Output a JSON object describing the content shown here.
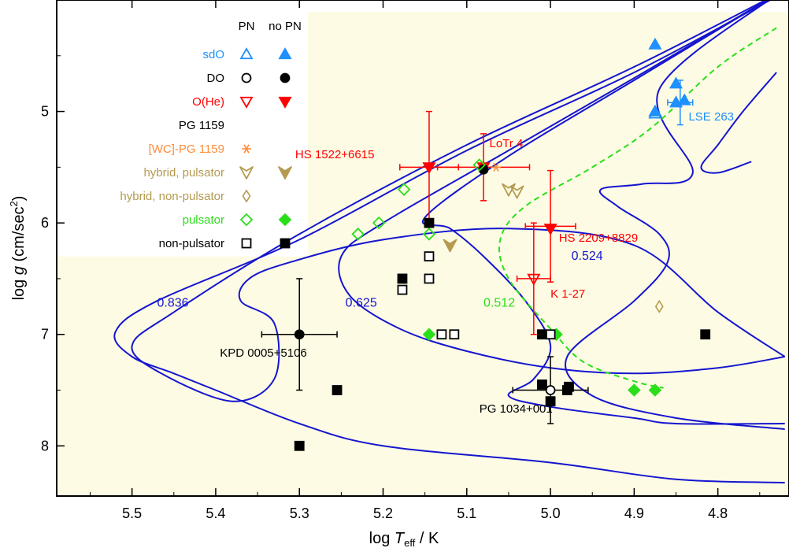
{
  "chart_data": {
    "type": "scatter",
    "xlabel_prefix": "log ",
    "xlabel_T": "T",
    "xlabel_sub": "eff",
    "xlabel_suffix": " / K",
    "ylabel_prefix": "log ",
    "ylabel_g": "g",
    "ylabel_paren": " (cm/sec",
    "ylabel_sup": "2",
    "ylabel_close": ")",
    "xlim": [
      5.59,
      4.715
    ],
    "ylim": [
      8.45,
      4.0
    ],
    "x_ticks": [
      "5.5",
      "5.4",
      "5.3",
      "5.2",
      "5.1",
      "5.0",
      "4.9",
      "4.8"
    ],
    "y_ticks": [
      "5",
      "6",
      "7",
      "8"
    ],
    "colors": {
      "background": "#fdfbe4",
      "track": "#1515d0",
      "sdo": "#1e90ff",
      "ohe": "#ff0000",
      "pg1159": "#000000",
      "wc": "#ff8c3a",
      "hybrid": "#b49a50",
      "pulsator": "#2adf1a",
      "black": "#000000"
    },
    "legend": {
      "col_pn": "PN",
      "col_nopn": "no PN",
      "rows": [
        {
          "label": "sdO",
          "color": "#1e90ff",
          "pn": "tri-up-open",
          "nopn": "tri-up-filled"
        },
        {
          "label": "DO",
          "color": "#000000",
          "pn": "circle-open",
          "nopn": "circle-filled"
        },
        {
          "label": "O(He)",
          "color": "#ff0000",
          "pn": "tri-down-open",
          "nopn": "tri-down-filled"
        },
        {
          "label": "PG 1159",
          "color": "#000000",
          "pn": "",
          "nopn": ""
        },
        {
          "label": "[WC]-PG 1159",
          "color": "#ff8c3a",
          "pn": "asterisk",
          "nopn": ""
        },
        {
          "label": "hybrid,      pulsator",
          "color": "#b49a50",
          "pn": "arrow-open",
          "nopn": "arrow-filled"
        },
        {
          "label": "hybrid, non-pulsator",
          "color": "#b49a50",
          "pn": "diamond-small-open",
          "nopn": ""
        },
        {
          "label": "pulsator",
          "color": "#2adf1a",
          "pn": "diamond-open",
          "nopn": "diamond-filled"
        },
        {
          "label": "non-pulsator",
          "color": "#000000",
          "pn": "square-open",
          "nopn": "square-filled"
        }
      ]
    },
    "track_labels": [
      {
        "text": "0.836",
        "x": 5.47,
        "y": 6.75
      },
      {
        "text": "0.625",
        "x": 5.245,
        "y": 6.75
      },
      {
        "text": "0.512",
        "x": 5.08,
        "y": 6.75
      },
      {
        "text": "0.524",
        "x": 4.975,
        "y": 6.33
      }
    ],
    "tracks": [
      {
        "mass": "0.836",
        "points": [
          [
            4.73,
            3.95
          ],
          [
            4.9,
            4.6
          ],
          [
            5.1,
            5.3
          ],
          [
            5.3,
            6.1
          ],
          [
            5.45,
            6.8
          ],
          [
            5.5,
            7.1
          ],
          [
            5.465,
            7.35
          ],
          [
            5.38,
            7.6
          ],
          [
            5.33,
            7.4
          ],
          [
            5.33,
            6.9
          ],
          [
            5.37,
            6.7
          ],
          [
            5.36,
            6.5
          ],
          [
            5.31,
            6.35
          ],
          [
            5.2,
            6.15
          ],
          [
            5.05,
            6.05
          ],
          [
            4.9,
            6.2
          ],
          [
            4.8,
            6.8
          ],
          [
            4.72,
            7.2
          ]
        ]
      },
      {
        "mass": "0.836b",
        "points": [
          [
            4.73,
            3.97
          ],
          [
            4.9,
            4.65
          ],
          [
            5.1,
            5.35
          ],
          [
            5.3,
            6.15
          ],
          [
            5.47,
            6.7
          ],
          [
            5.52,
            6.98
          ],
          [
            5.5,
            7.2
          ],
          [
            5.45,
            7.35
          ],
          [
            5.4,
            7.5
          ],
          [
            5.3,
            7.8
          ],
          [
            5.2,
            8.0
          ],
          [
            5.0,
            8.15
          ],
          [
            4.85,
            8.3
          ],
          [
            4.72,
            8.33
          ]
        ]
      },
      {
        "mass": "0.625",
        "points": [
          [
            4.73,
            3.95
          ],
          [
            4.9,
            4.7
          ],
          [
            5.05,
            5.35
          ],
          [
            5.2,
            6.0
          ],
          [
            5.25,
            6.3
          ],
          [
            5.24,
            6.65
          ],
          [
            5.18,
            6.95
          ],
          [
            5.1,
            7.15
          ],
          [
            5.0,
            7.3
          ],
          [
            4.9,
            7.35
          ],
          [
            4.8,
            7.3
          ],
          [
            4.72,
            7.2
          ]
        ]
      },
      {
        "mass": "0.625b",
        "points": [
          [
            4.73,
            3.95
          ],
          [
            4.9,
            4.72
          ],
          [
            5.05,
            5.4
          ],
          [
            5.15,
            5.95
          ],
          [
            5.12,
            6.05
          ],
          [
            5.08,
            6.3
          ],
          [
            5.03,
            6.7
          ],
          [
            5.0,
            7.1
          ],
          [
            5.02,
            7.4
          ],
          [
            5.05,
            7.55
          ],
          [
            5.0,
            7.65
          ],
          [
            4.9,
            7.75
          ],
          [
            4.85,
            7.8
          ],
          [
            4.72,
            7.8
          ]
        ]
      },
      {
        "mass": "0.524",
        "points": [
          [
            4.73,
            3.95
          ],
          [
            4.87,
            4.8
          ],
          [
            4.83,
            5.55
          ],
          [
            4.89,
            5.65
          ],
          [
            4.94,
            5.7
          ],
          [
            4.92,
            5.85
          ],
          [
            4.87,
            6.1
          ],
          [
            4.86,
            6.35
          ],
          [
            4.9,
            6.7
          ],
          [
            4.98,
            7.2
          ],
          [
            4.95,
            7.55
          ],
          [
            4.85,
            7.75
          ],
          [
            4.72,
            7.85
          ]
        ]
      },
      {
        "mass": "0.524b",
        "points": [
          [
            4.73,
            4.65
          ],
          [
            4.77,
            5.0
          ],
          [
            4.8,
            5.3
          ],
          [
            4.82,
            5.5
          ],
          [
            4.8,
            5.55
          ],
          [
            4.76,
            5.45
          ]
        ]
      }
    ],
    "dashed_track": {
      "mass": "0.512",
      "points": [
        [
          4.73,
          4.25
        ],
        [
          4.8,
          4.6
        ],
        [
          4.88,
          5.15
        ],
        [
          4.95,
          5.5
        ],
        [
          5.03,
          5.85
        ],
        [
          5.06,
          6.15
        ],
        [
          5.05,
          6.5
        ],
        [
          5.0,
          6.95
        ],
        [
          4.96,
          7.25
        ],
        [
          4.9,
          7.42
        ],
        [
          4.865,
          7.48
        ]
      ]
    },
    "points": [
      {
        "name": "sdO-1",
        "marker": "tri-up-filled",
        "color": "#1e90ff",
        "x": 4.875,
        "y": 4.4
      },
      {
        "name": "sdO-2",
        "marker": "tri-up-filled",
        "color": "#1e90ff",
        "x": 4.85,
        "y": 4.75
      },
      {
        "name": "sdO-3",
        "marker": "tri-up-filled",
        "color": "#1e90ff",
        "x": 4.85,
        "y": 4.92
      },
      {
        "name": "sdO-4",
        "marker": "tri-up-filled",
        "color": "#1e90ff",
        "x": 4.875,
        "y": 5.0
      },
      {
        "name": "sdO-PN",
        "marker": "tri-up-open",
        "color": "#1e90ff",
        "x": 4.875,
        "y": 5.02
      },
      {
        "name": "LSE263",
        "marker": "tri-up-filled",
        "color": "#1e90ff",
        "x": 4.84,
        "y": 4.9
      },
      {
        "name": "HS1522",
        "marker": "tri-down-filled",
        "color": "#ff0000",
        "x": 5.145,
        "y": 5.5
      },
      {
        "name": "LoTr4",
        "marker": "tri-down-filled",
        "color": "#ff0000",
        "x": 5.08,
        "y": 5.5
      },
      {
        "name": "HS2209",
        "marker": "tri-down-filled",
        "color": "#ff0000",
        "x": 5.0,
        "y": 6.05
      },
      {
        "name": "K1-27",
        "marker": "tri-down-open",
        "color": "#ff0000",
        "x": 5.02,
        "y": 6.5
      },
      {
        "name": "WC-1",
        "marker": "asterisk",
        "color": "#ff8c3a",
        "x": 5.065,
        "y": 5.5
      },
      {
        "name": "KPD0005",
        "marker": "circle-filled",
        "color": "#000000",
        "x": 5.3,
        "y": 7.0
      },
      {
        "name": "PG1034",
        "marker": "circle-open",
        "color": "#000000",
        "x": 5.0,
        "y": 7.5
      },
      {
        "name": "LoTr4-DO",
        "marker": "circle-filled",
        "color": "#000000",
        "x": 5.08,
        "y": 5.52
      },
      {
        "name": "hyb-1",
        "marker": "arrow-open",
        "color": "#b49a50",
        "x": 5.05,
        "y": 5.7
      },
      {
        "name": "hyb-2",
        "marker": "arrow-open",
        "color": "#b49a50",
        "x": 5.04,
        "y": 5.72
      },
      {
        "name": "hyb-3",
        "marker": "arrow-filled",
        "color": "#b49a50",
        "x": 5.12,
        "y": 6.2
      },
      {
        "name": "hyb-np",
        "marker": "diamond-small-open",
        "color": "#b49a50",
        "x": 4.87,
        "y": 6.75
      },
      {
        "name": "puls-o1",
        "marker": "diamond-open",
        "color": "#2adf1a",
        "x": 5.23,
        "y": 6.1
      },
      {
        "name": "puls-o2",
        "marker": "diamond-open",
        "color": "#2adf1a",
        "x": 5.205,
        "y": 6.0
      },
      {
        "name": "puls-o3",
        "marker": "diamond-open",
        "color": "#2adf1a",
        "x": 5.175,
        "y": 5.7
      },
      {
        "name": "puls-o4",
        "marker": "diamond-open",
        "color": "#2adf1a",
        "x": 5.145,
        "y": 6.1
      },
      {
        "name": "puls-o5",
        "marker": "diamond-open",
        "color": "#2adf1a",
        "x": 5.085,
        "y": 5.48
      },
      {
        "name": "puls-f1",
        "marker": "diamond-filled",
        "color": "#2adf1a",
        "x": 5.145,
        "y": 7.0
      },
      {
        "name": "puls-f2",
        "marker": "diamond-filled",
        "color": "#2adf1a",
        "x": 4.993,
        "y": 7.0
      },
      {
        "name": "puls-f3",
        "marker": "diamond-filled",
        "color": "#2adf1a",
        "x": 4.9,
        "y": 7.5
      },
      {
        "name": "puls-f4",
        "marker": "diamond-filled",
        "color": "#2adf1a",
        "x": 4.875,
        "y": 7.5
      },
      {
        "name": "np-o1",
        "marker": "square-open",
        "color": "#000000",
        "x": 5.145,
        "y": 6.3
      },
      {
        "name": "np-o2",
        "marker": "square-open",
        "color": "#000000",
        "x": 5.145,
        "y": 6.5
      },
      {
        "name": "np-o3",
        "marker": "square-open",
        "color": "#000000",
        "x": 5.177,
        "y": 6.6
      },
      {
        "name": "np-o4",
        "marker": "square-open",
        "color": "#000000",
        "x": 5.13,
        "y": 7.0
      },
      {
        "name": "np-o5",
        "marker": "square-open",
        "color": "#000000",
        "x": 5.115,
        "y": 7.0
      },
      {
        "name": "np-o6",
        "marker": "square-open",
        "color": "#000000",
        "x": 5.0,
        "y": 7.0
      },
      {
        "name": "np-f1",
        "marker": "square-filled",
        "color": "#000000",
        "x": 5.145,
        "y": 6.0
      },
      {
        "name": "np-f2",
        "marker": "square-filled",
        "color": "#000000",
        "x": 5.177,
        "y": 6.5
      },
      {
        "name": "np-f3",
        "marker": "square-filled",
        "color": "#000000",
        "x": 5.3,
        "y": 8.0
      },
      {
        "name": "np-f4",
        "marker": "square-filled",
        "color": "#000000",
        "x": 5.255,
        "y": 7.5
      },
      {
        "name": "np-f5",
        "marker": "square-filled",
        "color": "#000000",
        "x": 5.01,
        "y": 7.0
      },
      {
        "name": "np-f6",
        "marker": "square-filled",
        "color": "#000000",
        "x": 5.01,
        "y": 7.45
      },
      {
        "name": "np-f7",
        "marker": "square-filled",
        "color": "#000000",
        "x": 4.98,
        "y": 7.5
      },
      {
        "name": "np-f8",
        "marker": "square-filled",
        "color": "#000000",
        "x": 4.978,
        "y": 7.47
      },
      {
        "name": "np-f9",
        "marker": "square-filled",
        "color": "#000000",
        "x": 5.0,
        "y": 7.6
      },
      {
        "name": "np-f10",
        "marker": "square-filled",
        "color": "#000000",
        "x": 4.815,
        "y": 7.0
      }
    ],
    "error_bars": [
      {
        "name": "HS1522",
        "color": "#ff0000",
        "x": 5.145,
        "y": 5.5,
        "xerr": 0.035,
        "yerr": 0.5
      },
      {
        "name": "LoTr4",
        "color": "#ff0000",
        "x": 5.08,
        "y": 5.5,
        "xerr": 0.055,
        "yerr": 0.3
      },
      {
        "name": "HS2209",
        "color": "#ff0000",
        "x": 5.0,
        "y": 6.03,
        "xerr": 0.03,
        "yerr": 0.5
      },
      {
        "name": "K1-27",
        "color": "#ff0000",
        "x": 5.02,
        "y": 6.5,
        "xerr": 0.02,
        "yerr": 0.5
      },
      {
        "name": "KPD0005",
        "color": "#000000",
        "x": 5.3,
        "y": 7.0,
        "xerr": 0.045,
        "yerr": 0.5
      },
      {
        "name": "PG1034",
        "color": "#000000",
        "x": 5.0,
        "y": 7.5,
        "xerr": 0.045,
        "yerr": 0.3
      },
      {
        "name": "LSE263",
        "color": "#1e90ff",
        "x": 4.845,
        "y": 4.92,
        "xerr": 0.015,
        "yerr": 0.2
      }
    ],
    "annotations": [
      {
        "text": "HS 1522+6615",
        "color": "#ff0000",
        "x": 5.305,
        "y": 5.42
      },
      {
        "text": "LoTr 4",
        "color": "#ff0000",
        "x": 5.073,
        "y": 5.32
      },
      {
        "text": "HS 2209+8829",
        "color": "#ff0000",
        "x": 4.99,
        "y": 6.17
      },
      {
        "text": "K 1-27",
        "color": "#ff0000",
        "x": 5.0,
        "y": 6.67
      },
      {
        "text": "LSE 263",
        "color": "#1e90ff",
        "x": 4.835,
        "y": 5.08
      },
      {
        "text": "KPD 0005+5106",
        "color": "#000000",
        "x": 5.395,
        "y": 7.2
      },
      {
        "text": "PG 1034+001",
        "color": "#000000",
        "x": 5.085,
        "y": 7.7
      }
    ]
  }
}
